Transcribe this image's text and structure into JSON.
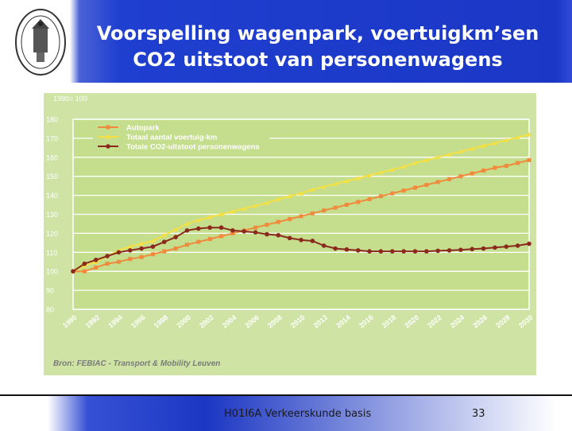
{
  "slide": {
    "title_line1": "Voorspelling wagenpark, voertuigkm’sen",
    "title_line2": "CO2 uitstoot van personenwagens",
    "footer_text": "H01I6A Verkeerskunde basis",
    "page_number": "33",
    "header_color": "#1f3fd0"
  },
  "chart_data": {
    "type": "line",
    "title": "",
    "index_label": "1990= 100",
    "xlabel": "",
    "ylabel": "",
    "x": [
      1990,
      1991,
      1992,
      1993,
      1994,
      1995,
      1996,
      1997,
      1998,
      1999,
      2000,
      2001,
      2002,
      2003,
      2004,
      2005,
      2006,
      2007,
      2008,
      2009,
      2010,
      2011,
      2012,
      2013,
      2014,
      2015,
      2016,
      2017,
      2018,
      2019,
      2020,
      2021,
      2022,
      2023,
      2024,
      2025,
      2026,
      2027,
      2028,
      2029,
      2030
    ],
    "x_tick_labels": [
      "1990",
      "1992",
      "1994",
      "1996",
      "1998",
      "2000",
      "2002",
      "2004",
      "2006",
      "2008",
      "2010",
      "2012",
      "2014",
      "2016",
      "2018",
      "2020",
      "2022",
      "2024",
      "2026",
      "2028",
      "2030"
    ],
    "ylim": [
      80,
      180
    ],
    "y_ticks": [
      80,
      90,
      100,
      110,
      120,
      130,
      140,
      150,
      160,
      170,
      180
    ],
    "grid": true,
    "legend_position": "top-left",
    "series": [
      {
        "name": "Autopark",
        "color": "#f08a3c",
        "marker": "square",
        "values": [
          100,
          100,
          102,
          104,
          105,
          106.5,
          107.5,
          109,
          110.5,
          112,
          114,
          115.5,
          117,
          118.5,
          120,
          121.5,
          123,
          124.5,
          126,
          127.5,
          129,
          130.5,
          132,
          133.5,
          135,
          136.5,
          138,
          139.5,
          141,
          142.5,
          144,
          145.5,
          147,
          148.5,
          150,
          151.5,
          153,
          154.5,
          155.5,
          157,
          158.5
        ]
      },
      {
        "name": "Totaal aantal voertuig-km",
        "color": "#f4e043",
        "marker": "triangle",
        "values": [
          100,
          103,
          105,
          108,
          111,
          113,
          114.5,
          116,
          119,
          122,
          125,
          127,
          128.5,
          130,
          131.5,
          133,
          134.5,
          136,
          138,
          139.5,
          141,
          143,
          144.5,
          146,
          147.5,
          149,
          150.5,
          152,
          153.5,
          155,
          157,
          158.5,
          160,
          161.5,
          163,
          164.5,
          166,
          167.5,
          169,
          170.5,
          172
        ]
      },
      {
        "name": "Totale CO2-uitstoot personenwagens",
        "color": "#8b2a1c",
        "marker": "circle",
        "values": [
          100,
          104,
          106,
          108,
          110,
          111,
          112,
          113,
          115.5,
          118,
          121.5,
          122.5,
          123,
          123,
          121.5,
          121,
          120.5,
          119.5,
          119,
          117.5,
          116.5,
          116,
          113.5,
          112,
          111.5,
          111,
          110.5,
          110.5,
          110.5,
          110.5,
          110.5,
          110.5,
          110.8,
          111,
          111.3,
          111.7,
          112,
          112.5,
          113,
          113.5,
          114.5
        ]
      }
    ],
    "source": "Bron: FEBIAC - Transport & Mobility Leuven"
  }
}
